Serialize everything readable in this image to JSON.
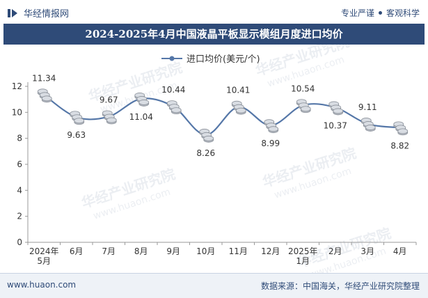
{
  "header": {
    "brand_name": "华经情报网",
    "tagline_left": "专业严谨",
    "tagline_right": "客观科学"
  },
  "watermark": {
    "cn": "华经产业研究院",
    "url": "www.huaon.com"
  },
  "footer": {
    "url": "www.huaon.com",
    "source": "数据来源：中国海关，华经产业研究院整理"
  },
  "colors": {
    "brand_navy": "#2f4b78",
    "line": "#5577a8",
    "coin_fill": "#d9dde3",
    "coin_stroke": "#8a9099"
  },
  "chart_data": {
    "type": "line",
    "title": "2024-2025年4月中国液晶平板显示模组月度进口均价",
    "categories": [
      "2024年\n5月",
      "6月",
      "7月",
      "8月",
      "9月",
      "10月",
      "11月",
      "12月",
      "2025年\n1月",
      "2月",
      "3月",
      "4月"
    ],
    "series": [
      {
        "name": "进口均价(美元/个)",
        "values": [
          11.34,
          9.63,
          9.67,
          11.04,
          10.44,
          8.26,
          10.41,
          8.99,
          10.54,
          10.37,
          9.11,
          8.82
        ]
      }
    ],
    "value_labels": [
      "11.34",
      "9.63",
      "9.67",
      "11.04",
      "10.44",
      "8.26",
      "10.41",
      "8.99",
      "10.54",
      "10.37",
      "9.11",
      "8.82"
    ],
    "ylim": [
      0,
      12
    ],
    "yticks": [
      0,
      2,
      4,
      6,
      8,
      10,
      12
    ],
    "legend_position": "top",
    "grid": false,
    "marker": "coin-stack"
  }
}
